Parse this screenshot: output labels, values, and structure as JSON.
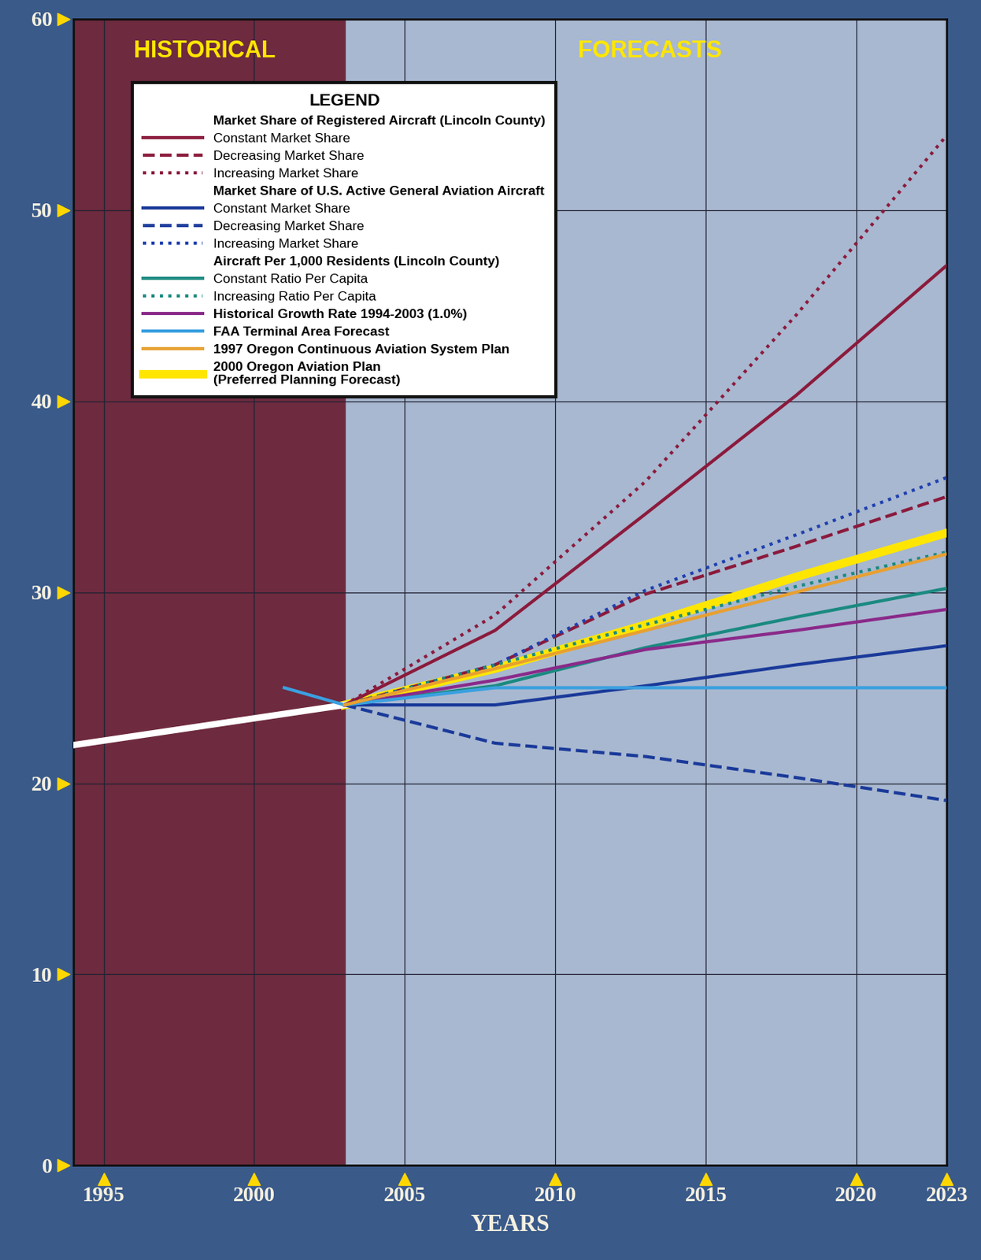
{
  "chart_data": {
    "type": "line",
    "x_label": "YEARS",
    "region_labels": [
      "HISTORICAL",
      "FORECASTS"
    ],
    "forecast_start": 2003,
    "legend_title": "LEGEND",
    "legend": "upper left",
    "grid": true,
    "xlim": [
      1994,
      2023
    ],
    "xticks": [
      1995,
      2000,
      2005,
      2010,
      2015,
      2020,
      2023
    ],
    "ylim": [
      0,
      60
    ],
    "yticks": [
      0,
      10,
      20,
      30,
      40,
      50,
      60
    ],
    "series": [
      {
        "color": "#ffffff",
        "line_style": "solid",
        "x": [
          1994,
          2003
        ],
        "values": [
          22.0,
          24.1
        ]
      },
      {
        "group": "Market Share of Registered Aircraft (Lincoln County)",
        "name": "Constant Market Share",
        "color": "#8b1a3c",
        "line_style": "solid",
        "x": [
          2003,
          2008,
          2013,
          2018,
          2023
        ],
        "values": [
          24.1,
          28.0,
          34.1,
          40.3,
          47.1
        ]
      },
      {
        "group": "Market Share of Registered Aircraft (Lincoln County)",
        "name": "Decreasing Market Share",
        "color": "#8b1a3c",
        "line_style": "dashed",
        "x": [
          2003,
          2008,
          2013,
          2018,
          2023
        ],
        "values": [
          24.1,
          26.2,
          29.9,
          32.4,
          35.0
        ]
      },
      {
        "group": "Market Share of Registered Aircraft (Lincoln County)",
        "name": "Increasing Market Share",
        "color": "#8b1a3c",
        "line_style": "dotted",
        "x": [
          2003,
          2008,
          2013,
          2018,
          2023
        ],
        "values": [
          24.1,
          28.8,
          35.8,
          44.5,
          53.9
        ]
      },
      {
        "group": "Market Share of U.S. Active General Aviation Aircraft",
        "name": "Constant Market Share",
        "color": "#1a3a9a",
        "line_style": "solid",
        "x": [
          2003,
          2008,
          2013,
          2018,
          2023
        ],
        "values": [
          24.1,
          24.1,
          25.1,
          26.2,
          27.2
        ]
      },
      {
        "group": "Market Share of U.S. Active General Aviation Aircraft",
        "name": "Decreasing Market Share",
        "color": "#1a3a9a",
        "line_style": "dashed",
        "x": [
          2003,
          2008,
          2013,
          2018,
          2023
        ],
        "values": [
          24.1,
          22.1,
          21.4,
          20.3,
          19.1
        ]
      },
      {
        "group": "Market Share of U.S. Active General Aviation Aircraft",
        "name": "Increasing Market Share",
        "color": "#2040b0",
        "line_style": "dotted",
        "x": [
          2003,
          2008,
          2013,
          2018,
          2023
        ],
        "values": [
          24.1,
          26.2,
          30.1,
          33.0,
          36.0
        ]
      },
      {
        "group": "Aircraft Per 1,000 Residents (Lincoln County)",
        "name": "Constant Ratio Per Capita",
        "color": "#1a8a80",
        "line_style": "solid",
        "x": [
          2003,
          2008,
          2013,
          2018,
          2023
        ],
        "values": [
          24.1,
          25.1,
          27.1,
          28.7,
          30.2
        ]
      },
      {
        "group": "Aircraft Per 1,000 Residents (Lincoln County)",
        "name": "Increasing Ratio Per Capita",
        "color": "#1a8a80",
        "line_style": "dotted",
        "x": [
          2003,
          2008,
          2013,
          2018,
          2023
        ],
        "values": [
          24.1,
          26.2,
          28.3,
          30.3,
          32.1
        ]
      },
      {
        "name": "Historical Growth Rate 1994-2003 (1.0%)",
        "color": "#8a2a8a",
        "line_style": "solid",
        "x": [
          2003,
          2008,
          2013,
          2018,
          2023
        ],
        "values": [
          24.1,
          25.4,
          27.0,
          28.0,
          29.1
        ]
      },
      {
        "name": "FAA Terminal Area Forecast",
        "color": "#3aa0e0",
        "line_style": "solid",
        "x": [
          2001,
          2003,
          2008,
          2023
        ],
        "values": [
          25.0,
          24.1,
          25.0,
          25.0
        ]
      },
      {
        "name": "1997 Oregon Continuous Aviation System Plan",
        "color": "#e8a030",
        "line_style": "solid",
        "x": [
          2003,
          2008,
          2013,
          2018,
          2023
        ],
        "values": [
          24.1,
          26.0,
          28.0,
          30.0,
          32.0
        ]
      },
      {
        "name": "2000 Oregon Aviation Plan\n(Preferred Planning Forecast)",
        "color": "#ffe600",
        "line_style": "solid",
        "x": [
          2003,
          2008,
          2013,
          2018,
          2023
        ],
        "values": [
          24.1,
          26.0,
          28.3,
          30.8,
          33.1
        ]
      }
    ]
  }
}
